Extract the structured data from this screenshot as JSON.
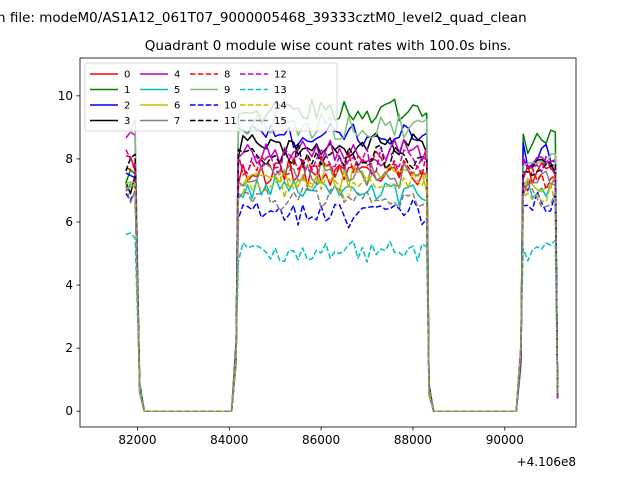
{
  "suptitle": "n file: modeM0/AS1A12_061T07_9000005468_39333cztM0_level2_quad_clean",
  "chart_data": {
    "type": "line",
    "title": "Quadrant 0 module wise count rates with 100.0s bins.",
    "xlabel": "",
    "ylabel": "",
    "x_offset_label": "+4.106e8",
    "xlim": [
      80750,
      91550
    ],
    "ylim": [
      -0.5,
      11.2
    ],
    "x_ticks": [
      82000,
      84000,
      86000,
      88000,
      90000
    ],
    "x_tick_labels": [
      "82000",
      "84000",
      "86000",
      "88000",
      "90000"
    ],
    "y_ticks": [
      0,
      2,
      4,
      6,
      8,
      10
    ],
    "y_tick_labels": [
      "0",
      "2",
      "4",
      "6",
      "8",
      "10"
    ],
    "legend_position": "upper-left",
    "legend_columns": 5,
    "grid": false,
    "series": [
      {
        "name": "0",
        "color": "#ff0000",
        "dash": "solid",
        "a": 7.9,
        "b": 7.6,
        "c": 7.5
      },
      {
        "name": "1",
        "color": "#008000",
        "dash": "solid",
        "a": 7.6,
        "b": 9.5,
        "c": 8.6
      },
      {
        "name": "2",
        "color": "#0000ff",
        "dash": "solid",
        "a": 7.5,
        "b": 8.7,
        "c": 8.1
      },
      {
        "name": "3",
        "color": "#000000",
        "dash": "solid",
        "a": 7.2,
        "b": 8.4,
        "c": 7.7
      },
      {
        "name": "4",
        "color": "#bf00bf",
        "dash": "solid",
        "a": 8.6,
        "b": 8.2,
        "c": 7.9
      },
      {
        "name": "5",
        "color": "#00bfbf",
        "dash": "solid",
        "a": 7.0,
        "b": 7.0,
        "c": 7.0
      },
      {
        "name": "6",
        "color": "#bfbf00",
        "dash": "solid",
        "a": 7.3,
        "b": 7.4,
        "c": 7.2
      },
      {
        "name": "7",
        "color": "#808080",
        "dash": "solid",
        "a": 7.0,
        "b": 7.5,
        "c": 7.3
      },
      {
        "name": "8",
        "color": "#ff0000",
        "dash": "dashed",
        "a": 7.7,
        "b": 7.8,
        "c": 7.4
      },
      {
        "name": "9",
        "color": "#7fbf7f",
        "dash": "solid",
        "a": 9.2,
        "b": 9.0,
        "c": 8.0
      },
      {
        "name": "10",
        "color": "#0000ff",
        "dash": "dashed",
        "a": 6.7,
        "b": 6.3,
        "c": 6.6
      },
      {
        "name": "11",
        "color": "#000000",
        "dash": "dashed",
        "a": 7.8,
        "b": 8.1,
        "c": 7.6
      },
      {
        "name": "12",
        "color": "#bf00bf",
        "dash": "dashed",
        "a": 8.0,
        "b": 7.9,
        "c": 7.7
      },
      {
        "name": "13",
        "color": "#00bfbf",
        "dash": "dashed",
        "a": 5.3,
        "b": 5.1,
        "c": 5.1
      },
      {
        "name": "14",
        "color": "#bfbf00",
        "dash": "dashed",
        "a": 7.1,
        "b": 7.2,
        "c": 6.8
      },
      {
        "name": "15",
        "color": "#808080",
        "dash": "dashed",
        "a": 6.8,
        "b": 6.7,
        "c": 6.9
      }
    ],
    "segments": [
      {
        "x_start": 81750,
        "x_end": 81950,
        "level": "a"
      },
      {
        "x_start": 84200,
        "x_end": 88350,
        "level": "b"
      },
      {
        "x_start": 90400,
        "x_end": 91150,
        "level": "c"
      }
    ],
    "zero_ranges": [
      [
        82150,
        84050
      ],
      [
        88450,
        90250
      ]
    ]
  }
}
